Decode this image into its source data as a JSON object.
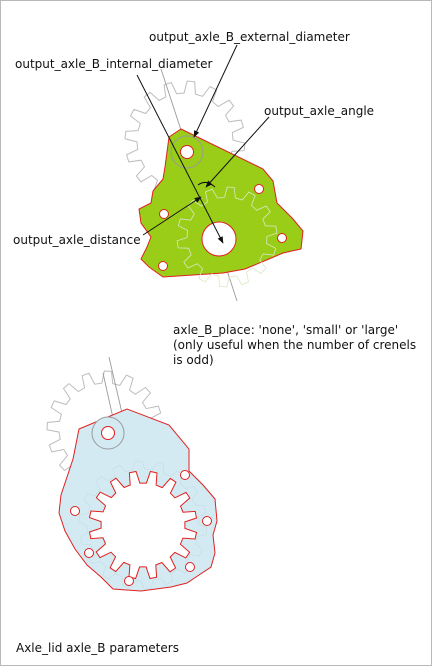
{
  "labels": {
    "external_diameter": "output_axle_B_external_diameter",
    "internal_diameter": "output_axle_B_internal_diameter",
    "angle": "output_axle_angle",
    "distance": "output_axle_distance"
  },
  "note": {
    "line1": "axle_B_place: 'none', 'small' or 'large'",
    "line2": "(only useful when the number of crenels",
    "line3": "is odd)"
  },
  "caption": "Axle_lid axle_B parameters",
  "colors": {
    "top_fill": "#9acd18",
    "bottom_fill": "#d4eaf2",
    "outline": "#e02020",
    "gear_stroke": "#bdbdbd",
    "leader": "#111111"
  }
}
